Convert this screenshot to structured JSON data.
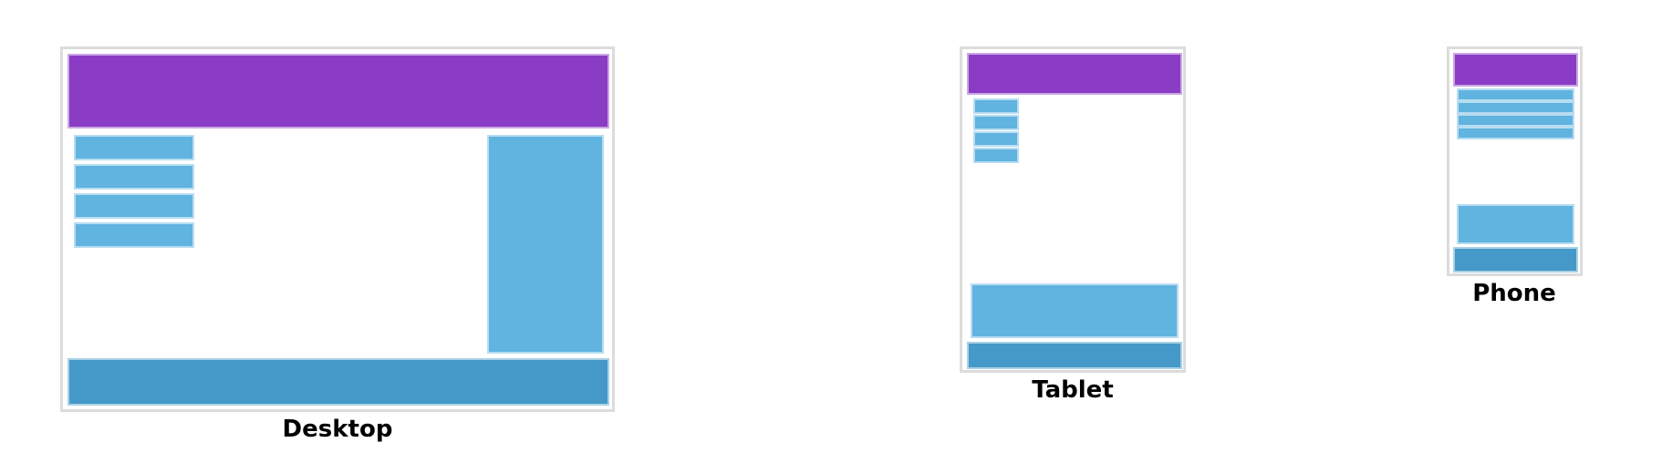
{
  "colors": {
    "header": "#8b3cc5",
    "nav": "#61b3e0",
    "side": "#61b3e0",
    "footer": "#4499c8",
    "frame_border": "#dcdcdc"
  },
  "devices": [
    {
      "id": "desktop",
      "label": "Desktop",
      "nav_items": 4
    },
    {
      "id": "tablet",
      "label": "Tablet",
      "nav_items": 4
    },
    {
      "id": "phone",
      "label": "Phone",
      "nav_items": 4
    }
  ]
}
